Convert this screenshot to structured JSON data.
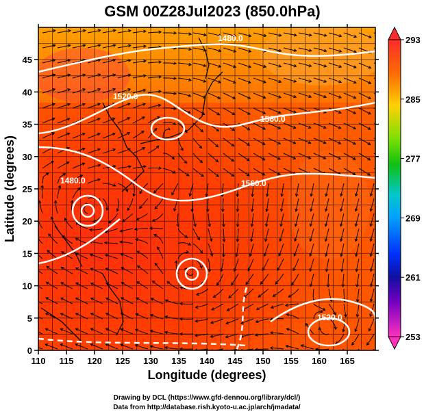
{
  "title": "GSM 00Z28Jul2023 (850.0hPa)",
  "x_axis": {
    "label": "Longitude (degrees)",
    "ticks": [
      "110",
      "115",
      "120",
      "125",
      "130",
      "135",
      "140",
      "145",
      "150",
      "155",
      "160",
      "165"
    ]
  },
  "y_axis": {
    "label": "Latitude  (degrees)",
    "ticks": [
      "0",
      "5",
      "10",
      "15",
      "20",
      "25",
      "30",
      "35",
      "40",
      "45"
    ]
  },
  "colorbar": {
    "ticks": [
      "293",
      "285",
      "277",
      "269",
      "261",
      "253"
    ],
    "colors": [
      "#ff2a2a",
      "#ff7a00",
      "#ffd000",
      "#a0e000",
      "#20c000",
      "#00c8c0",
      "#00a0ff",
      "#0040ff",
      "#1010b0",
      "#6000c0",
      "#c000c0",
      "#ff40c0"
    ]
  },
  "contour_labels": [
    "1480.0",
    "1520.0",
    "1560.0",
    "1560.0",
    "1480.0",
    "1520.0"
  ],
  "credits": {
    "line1": "Drawing by DCL (https://www.gfd-dennou.org/library/dcl/)",
    "line2": "Data from http://database.rish.kyoto-u.ac.jp/arch/jmadata/"
  },
  "colors": {
    "field_warm": "#ff3a00",
    "field_mid": "#ff6a10",
    "field_cool": "#ffa020",
    "contour": "#ffffff",
    "streamline": "#000000"
  }
}
